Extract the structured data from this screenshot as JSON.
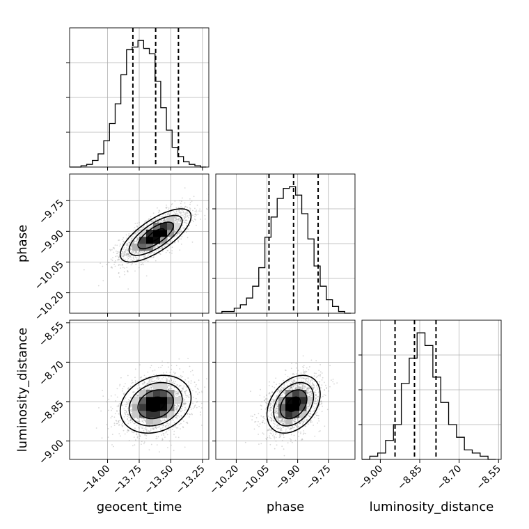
{
  "chart_data": {
    "type": "corner",
    "parameters": [
      "geocent_time",
      "phase",
      "luminosity_distance"
    ],
    "axes": {
      "geocent_time": {
        "label": "geocent_time",
        "range": [
          -14.3,
          -13.2
        ],
        "ticks": [
          -14.0,
          -13.75,
          -13.5,
          -13.25
        ],
        "tick_labels": [
          "−14.00",
          "−13.75",
          "−13.50",
          "−13.25"
        ]
      },
      "phase": {
        "label": "phase",
        "range": [
          -10.3,
          -9.62
        ],
        "ticks": [
          -10.2,
          -10.05,
          -9.9,
          -9.75
        ],
        "tick_labels": [
          "−10.20",
          "−10.05",
          "−9.90",
          "−9.75"
        ]
      },
      "luminosity_distance": {
        "label": "luminosity_distance",
        "range": [
          -9.07,
          -8.54
        ],
        "ticks": [
          -9.0,
          -8.85,
          -8.7,
          -8.55
        ],
        "tick_labels": [
          "−9.00",
          "−8.85",
          "−8.70",
          "−8.55"
        ]
      }
    },
    "histograms": [
      {
        "parameter": "geocent_time",
        "bins": [
          -14.3,
          -14.255,
          -14.21,
          -14.165,
          -14.12,
          -14.075,
          -14.03,
          -13.985,
          -13.94,
          -13.895,
          -13.85,
          -13.805,
          -13.76,
          -13.715,
          -13.67,
          -13.625,
          -13.58,
          -13.535,
          -13.49,
          -13.445,
          -13.4,
          -13.355,
          -13.31,
          -13.265,
          -13.22
        ],
        "counts": [
          0,
          0,
          1,
          2,
          5,
          10,
          20,
          33,
          48,
          70,
          89,
          91,
          96,
          90,
          86,
          65,
          45,
          28,
          15,
          8,
          4,
          2,
          1,
          0
        ],
        "quantiles": [
          -13.8,
          -13.62,
          -13.44
        ]
      },
      {
        "parameter": "phase",
        "bins": [
          -10.3,
          -10.27,
          -10.24,
          -10.21,
          -10.18,
          -10.15,
          -10.12,
          -10.09,
          -10.06,
          -10.03,
          -10.0,
          -9.97,
          -9.94,
          -9.91,
          -9.88,
          -9.85,
          -9.82,
          -9.79,
          -9.76,
          -9.73,
          -9.7,
          -9.67,
          -9.64
        ],
        "counts": [
          0,
          1,
          1,
          3,
          5,
          9,
          16,
          27,
          45,
          57,
          68,
          74,
          75,
          70,
          59,
          44,
          28,
          16,
          8,
          4,
          1,
          0
        ],
        "quantiles": [
          -10.04,
          -9.92,
          -9.8
        ]
      },
      {
        "parameter": "luminosity_distance",
        "bins": [
          -9.07,
          -9.04,
          -9.01,
          -8.98,
          -8.95,
          -8.92,
          -8.89,
          -8.86,
          -8.83,
          -8.8,
          -8.77,
          -8.74,
          -8.71,
          -8.68,
          -8.65,
          -8.62,
          -8.59,
          -8.56
        ],
        "counts": [
          0,
          1,
          2,
          6,
          11,
          24,
          32,
          40,
          36,
          26,
          18,
          11,
          7,
          3,
          2,
          1,
          0
        ],
        "quantiles": [
          -8.944,
          -8.87,
          -8.788
        ]
      }
    ],
    "pairs": [
      {
        "x": "geocent_time",
        "y": "phase",
        "mean": [
          -13.62,
          -9.92
        ],
        "sd": [
          0.14,
          0.065
        ],
        "rho": 0.72
      },
      {
        "x": "geocent_time",
        "y": "luminosity_distance",
        "mean": [
          -13.62,
          -8.86
        ],
        "sd": [
          0.14,
          0.055
        ],
        "rho": 0.22
      },
      {
        "x": "phase",
        "y": "luminosity_distance",
        "mean": [
          -9.92,
          -8.86
        ],
        "sd": [
          0.065,
          0.055
        ],
        "rho": 0.35
      }
    ],
    "grid": true
  }
}
